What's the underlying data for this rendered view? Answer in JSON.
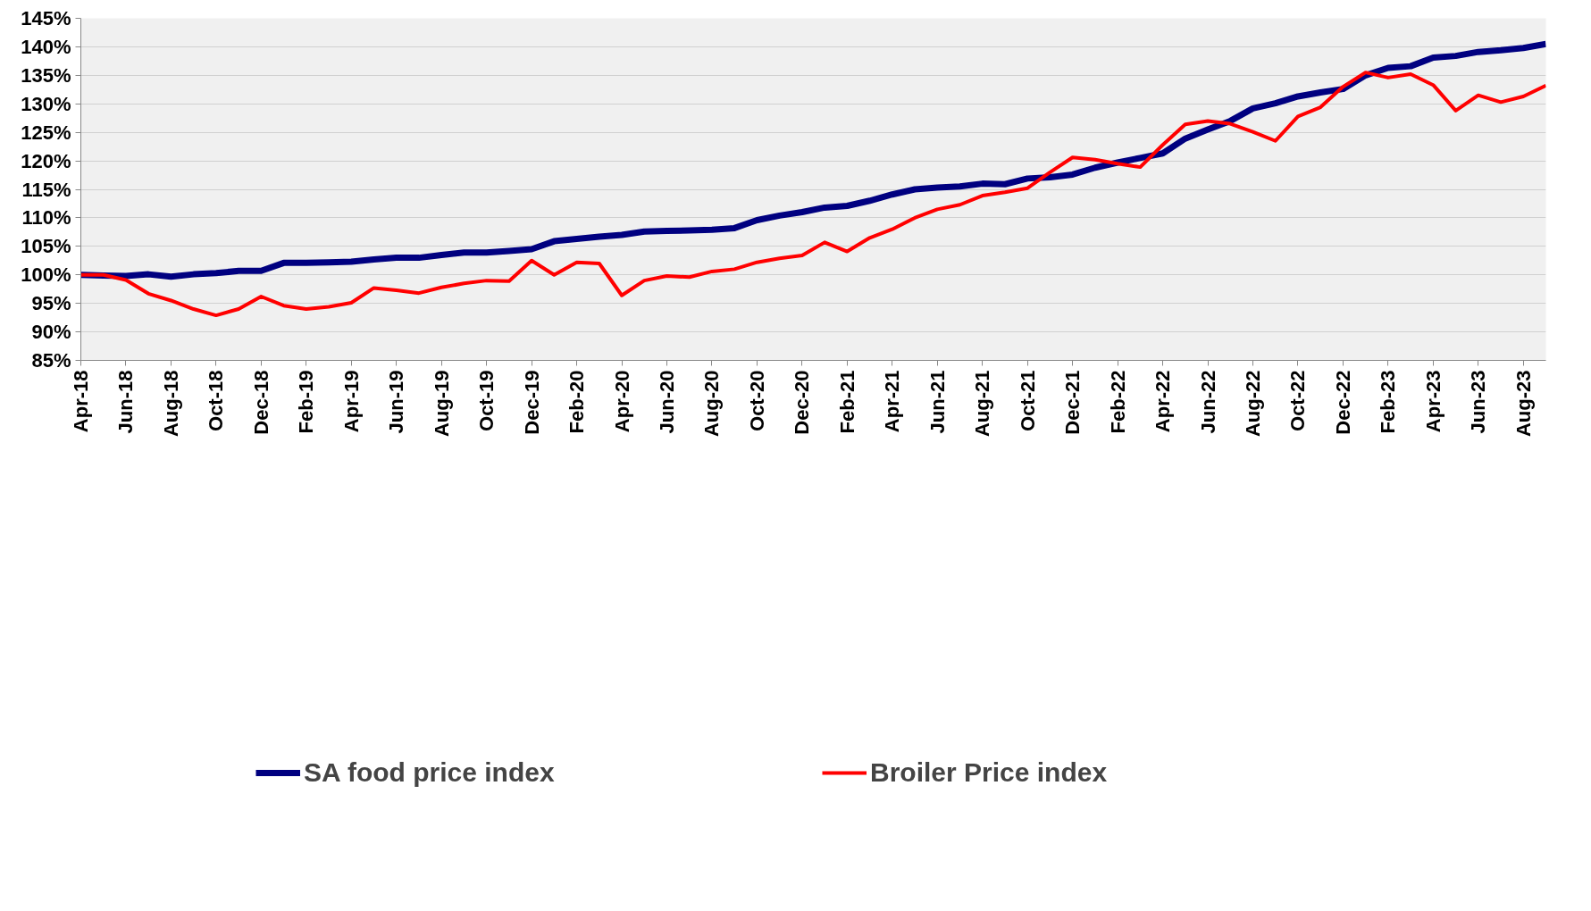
{
  "chart_data": {
    "type": "line",
    "x": [
      "2018-04",
      "2018-05",
      "2018-06",
      "2018-07",
      "2018-08",
      "2018-09",
      "2018-10",
      "2018-11",
      "2018-12",
      "2019-01",
      "2019-02",
      "2019-03",
      "2019-04",
      "2019-05",
      "2019-06",
      "2019-07",
      "2019-08",
      "2019-09",
      "2019-10",
      "2019-11",
      "2019-12",
      "2020-01",
      "2020-02",
      "2020-03",
      "2020-04",
      "2020-05",
      "2020-06",
      "2020-07",
      "2020-08",
      "2020-09",
      "2020-10",
      "2020-11",
      "2020-12",
      "2021-01",
      "2021-02",
      "2021-03",
      "2021-04",
      "2021-05",
      "2021-06",
      "2021-07",
      "2021-08",
      "2021-09",
      "2021-10",
      "2021-11",
      "2021-12",
      "2022-01",
      "2022-02",
      "2022-03",
      "2022-04",
      "2022-05",
      "2022-06",
      "2022-07",
      "2022-08",
      "2022-09",
      "2022-10",
      "2022-11",
      "2022-12",
      "2023-01",
      "2023-02",
      "2023-03",
      "2023-04",
      "2023-05",
      "2023-06",
      "2023-07",
      "2023-08",
      "2023-09"
    ],
    "series": [
      {
        "name": "SA food price index",
        "color": "#000080",
        "values": [
          100,
          99.9,
          99.8,
          100.1,
          99.7,
          100.1,
          100.3,
          100.7,
          100.7,
          102.1,
          102.1,
          102.2,
          102.3,
          102.7,
          103.0,
          103.0,
          103.5,
          103.9,
          103.9,
          104.2,
          104.5,
          105.9,
          106.3,
          106.7,
          107.0,
          107.6,
          107.7,
          107.8,
          107.9,
          108.2,
          109.6,
          110.4,
          111.0,
          111.8,
          112.1,
          113.0,
          114.1,
          115.0,
          115.3,
          115.5,
          116.0,
          115.9,
          116.9,
          117.1,
          117.6,
          118.8,
          119.7,
          120.5,
          121.3,
          123.9,
          125.5,
          127.0,
          129.2,
          130.1,
          131.3,
          132.0,
          132.6,
          135.0,
          136.3,
          136.6,
          138.1,
          138.4,
          139.1,
          139.4,
          139.8,
          140.5
        ]
      },
      {
        "name": "Broiler Price index",
        "color": "#ff0000",
        "values": [
          100,
          100,
          99.1,
          96.7,
          95.5,
          94.0,
          92.9,
          94.0,
          96.2,
          94.6,
          94.0,
          94.4,
          95.1,
          97.7,
          97.3,
          96.8,
          97.8,
          98.5,
          99.0,
          98.9,
          102.5,
          100.0,
          102.2,
          102.0,
          96.4,
          99.0,
          99.8,
          99.6,
          100.6,
          101.0,
          102.2,
          102.9,
          103.4,
          105.7,
          104.1,
          106.5,
          108.0,
          110.0,
          111.5,
          112.3,
          113.9,
          114.5,
          115.2,
          118.0,
          120.6,
          120.2,
          119.5,
          118.9,
          122.8,
          126.4,
          127.0,
          126.5,
          125.1,
          123.5,
          127.8,
          129.4,
          133.0,
          135.5,
          134.6,
          135.2,
          133.3,
          128.8,
          131.5,
          130.3,
          131.3,
          133.2
        ]
      }
    ],
    "xlim": [
      "2018-04",
      "2023-09"
    ],
    "xticks": [
      {
        "value": "2018-04",
        "label": "Apr-18"
      },
      {
        "value": "2018-06",
        "label": "Jun-18"
      },
      {
        "value": "2018-08",
        "label": "Aug-18"
      },
      {
        "value": "2018-10",
        "label": "Oct-18"
      },
      {
        "value": "2018-12",
        "label": "Dec-18"
      },
      {
        "value": "2019-02",
        "label": "Feb-19"
      },
      {
        "value": "2019-04",
        "label": "Apr-19"
      },
      {
        "value": "2019-06",
        "label": "Jun-19"
      },
      {
        "value": "2019-08",
        "label": "Aug-19"
      },
      {
        "value": "2019-10",
        "label": "Oct-19"
      },
      {
        "value": "2019-12",
        "label": "Dec-19"
      },
      {
        "value": "2020-02",
        "label": "Feb-20"
      },
      {
        "value": "2020-04",
        "label": "Apr-20"
      },
      {
        "value": "2020-06",
        "label": "Jun-20"
      },
      {
        "value": "2020-08",
        "label": "Aug-20"
      },
      {
        "value": "2020-10",
        "label": "Oct-20"
      },
      {
        "value": "2020-12",
        "label": "Dec-20"
      },
      {
        "value": "2021-02",
        "label": "Feb-21"
      },
      {
        "value": "2021-04",
        "label": "Apr-21"
      },
      {
        "value": "2021-06",
        "label": "Jun-21"
      },
      {
        "value": "2021-08",
        "label": "Aug-21"
      },
      {
        "value": "2021-10",
        "label": "Oct-21"
      },
      {
        "value": "2021-12",
        "label": "Dec-21"
      },
      {
        "value": "2022-02",
        "label": "Feb-22"
      },
      {
        "value": "2022-04",
        "label": "Apr-22"
      },
      {
        "value": "2022-06",
        "label": "Jun-22"
      },
      {
        "value": "2022-08",
        "label": "Aug-22"
      },
      {
        "value": "2022-10",
        "label": "Oct-22"
      },
      {
        "value": "2022-12",
        "label": "Dec-22"
      },
      {
        "value": "2023-02",
        "label": "Feb-23"
      },
      {
        "value": "2023-04",
        "label": "Apr-23"
      },
      {
        "value": "2023-06",
        "label": "Jun-23"
      },
      {
        "value": "2023-08",
        "label": "Aug-23"
      }
    ],
    "ylim": [
      85,
      145
    ],
    "yticks": [
      {
        "value": 85,
        "label": "85%"
      },
      {
        "value": 90,
        "label": "90%"
      },
      {
        "value": 95,
        "label": "95%"
      },
      {
        "value": 100,
        "label": "100%"
      },
      {
        "value": 105,
        "label": "105%"
      },
      {
        "value": 110,
        "label": "110%"
      },
      {
        "value": 115,
        "label": "115%"
      },
      {
        "value": 120,
        "label": "120%"
      },
      {
        "value": 125,
        "label": "125%"
      },
      {
        "value": 130,
        "label": "130%"
      },
      {
        "value": 135,
        "label": "135%"
      },
      {
        "value": 140,
        "label": "140%"
      },
      {
        "value": 145,
        "label": "145%"
      }
    ],
    "grid": "y",
    "legend": "bottom",
    "marker": "none",
    "line_style": "solid"
  }
}
